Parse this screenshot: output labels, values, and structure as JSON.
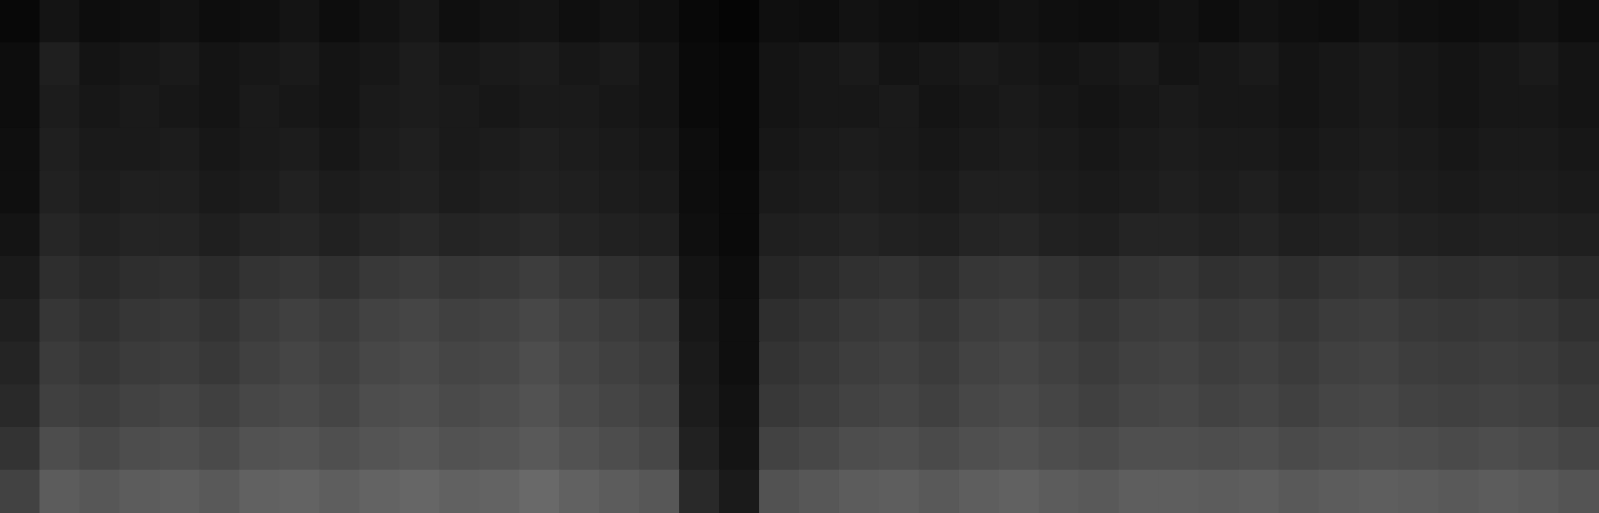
{
  "chart_data": {
    "type": "heatmap",
    "tick_labels": false,
    "grid": false,
    "cells": [
      [
        3,
        8,
        5,
        6,
        7,
        5,
        6,
        8,
        5,
        7,
        9,
        6,
        7,
        8,
        6,
        7,
        6,
        3,
        2,
        6,
        5,
        7,
        6,
        5,
        6,
        7,
        6,
        5,
        6,
        7,
        5,
        7,
        6,
        5,
        7,
        6,
        5,
        6,
        7,
        5
      ],
      [
        5,
        12,
        8,
        9,
        10,
        8,
        9,
        10,
        8,
        9,
        11,
        9,
        10,
        11,
        9,
        10,
        8,
        4,
        3,
        8,
        9,
        10,
        8,
        9,
        10,
        9,
        8,
        9,
        10,
        8,
        9,
        10,
        8,
        9,
        10,
        9,
        8,
        9,
        10,
        8
      ],
      [
        5,
        11,
        9,
        10,
        9,
        8,
        10,
        9,
        8,
        10,
        11,
        10,
        9,
        10,
        10,
        9,
        8,
        4,
        3,
        8,
        9,
        9,
        10,
        8,
        9,
        10,
        9,
        8,
        9,
        10,
        9,
        9,
        8,
        9,
        10,
        9,
        8,
        9,
        9,
        8
      ],
      [
        6,
        12,
        10,
        10,
        11,
        9,
        10,
        11,
        9,
        11,
        12,
        10,
        11,
        12,
        11,
        10,
        9,
        5,
        3,
        9,
        10,
        11,
        10,
        9,
        10,
        11,
        10,
        9,
        10,
        11,
        10,
        10,
        9,
        10,
        11,
        10,
        9,
        10,
        10,
        9
      ],
      [
        6,
        13,
        11,
        12,
        12,
        10,
        11,
        13,
        11,
        12,
        13,
        11,
        12,
        13,
        12,
        11,
        10,
        5,
        4,
        10,
        11,
        12,
        11,
        10,
        12,
        12,
        11,
        10,
        11,
        12,
        11,
        12,
        10,
        11,
        12,
        11,
        10,
        11,
        11,
        10
      ],
      [
        8,
        15,
        13,
        14,
        14,
        12,
        14,
        15,
        13,
        15,
        16,
        14,
        15,
        16,
        14,
        13,
        12,
        6,
        4,
        12,
        13,
        14,
        13,
        12,
        14,
        15,
        13,
        12,
        14,
        14,
        13,
        14,
        12,
        13,
        14,
        13,
        12,
        13,
        13,
        12
      ],
      [
        10,
        18,
        16,
        18,
        19,
        17,
        20,
        21,
        19,
        22,
        23,
        21,
        22,
        24,
        21,
        19,
        17,
        8,
        5,
        15,
        17,
        19,
        20,
        18,
        21,
        22,
        20,
        18,
        20,
        21,
        19,
        20,
        18,
        20,
        21,
        19,
        18,
        19,
        18,
        16
      ],
      [
        12,
        21,
        19,
        21,
        22,
        20,
        23,
        25,
        23,
        26,
        27,
        25,
        26,
        28,
        25,
        23,
        21,
        9,
        6,
        18,
        20,
        22,
        23,
        21,
        24,
        25,
        23,
        21,
        23,
        24,
        22,
        23,
        21,
        23,
        24,
        22,
        21,
        22,
        21,
        19
      ],
      [
        14,
        23,
        21,
        23,
        24,
        22,
        25,
        27,
        25,
        28,
        29,
        27,
        28,
        30,
        27,
        25,
        23,
        10,
        6,
        20,
        22,
        24,
        25,
        23,
        26,
        27,
        25,
        23,
        25,
        26,
        24,
        25,
        23,
        25,
        26,
        24,
        23,
        24,
        23,
        21
      ],
      [
        16,
        25,
        24,
        26,
        27,
        25,
        28,
        29,
        27,
        30,
        31,
        29,
        30,
        32,
        29,
        27,
        25,
        11,
        7,
        22,
        24,
        26,
        27,
        25,
        28,
        29,
        27,
        25,
        27,
        28,
        26,
        27,
        25,
        27,
        28,
        26,
        25,
        26,
        25,
        23
      ],
      [
        20,
        30,
        28,
        30,
        31,
        29,
        32,
        33,
        31,
        33,
        34,
        32,
        33,
        35,
        32,
        30,
        28,
        13,
        8,
        26,
        28,
        30,
        31,
        29,
        31,
        32,
        30,
        29,
        31,
        31,
        30,
        31,
        29,
        30,
        31,
        30,
        29,
        30,
        29,
        27
      ],
      [
        26,
        36,
        34,
        36,
        37,
        35,
        38,
        39,
        37,
        39,
        40,
        38,
        39,
        41,
        38,
        36,
        34,
        16,
        10,
        32,
        34,
        36,
        37,
        35,
        37,
        38,
        36,
        35,
        37,
        37,
        36,
        37,
        35,
        36,
        37,
        36,
        35,
        36,
        35,
        33
      ]
    ]
  }
}
